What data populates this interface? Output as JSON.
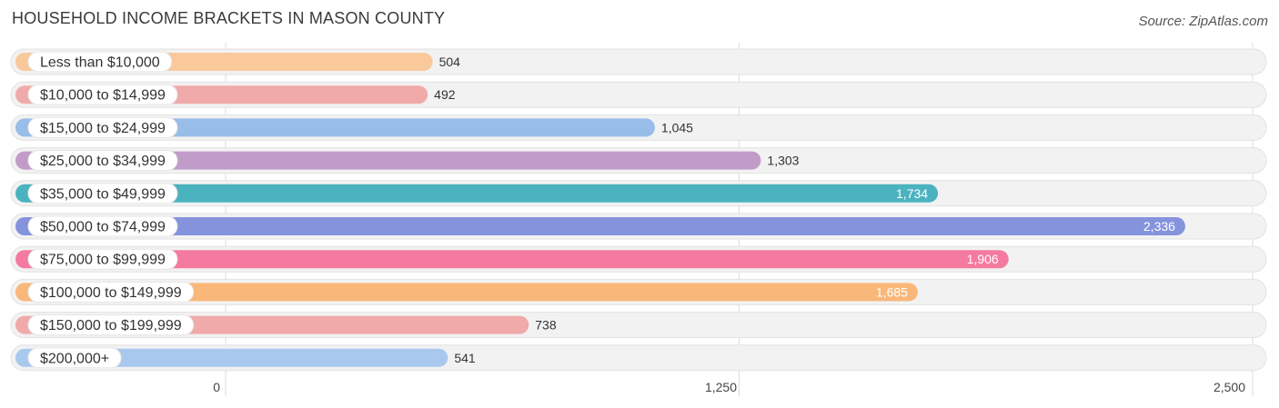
{
  "title": "HOUSEHOLD INCOME BRACKETS IN MASON COUNTY",
  "source": "Source: ZipAtlas.com",
  "chart_data": {
    "type": "bar",
    "orientation": "horizontal",
    "categories": [
      "Less than $10,000",
      "$10,000 to $14,999",
      "$15,000 to $24,999",
      "$25,000 to $34,999",
      "$35,000 to $49,999",
      "$50,000 to $74,999",
      "$75,000 to $99,999",
      "$100,000 to $149,999",
      "$150,000 to $199,999",
      "$200,000+"
    ],
    "values": [
      504,
      492,
      1045,
      1303,
      1734,
      2336,
      1906,
      1685,
      738,
      541
    ],
    "value_labels": [
      "504",
      "492",
      "1,045",
      "1,303",
      "1,734",
      "2,336",
      "1,906",
      "1,685",
      "738",
      "541"
    ],
    "colors": [
      "#f9c99c",
      "#f0aaaa",
      "#97bde8",
      "#c29cc8",
      "#4bb3bf",
      "#8593dd",
      "#f57aa0",
      "#f9b77a",
      "#f0aaaa",
      "#a9c8ee"
    ],
    "xlim": [
      0,
      2500
    ],
    "ticks": [
      0,
      1250,
      2500
    ],
    "tick_labels": [
      "0",
      "1,250",
      "2,500"
    ],
    "grid": true
  }
}
